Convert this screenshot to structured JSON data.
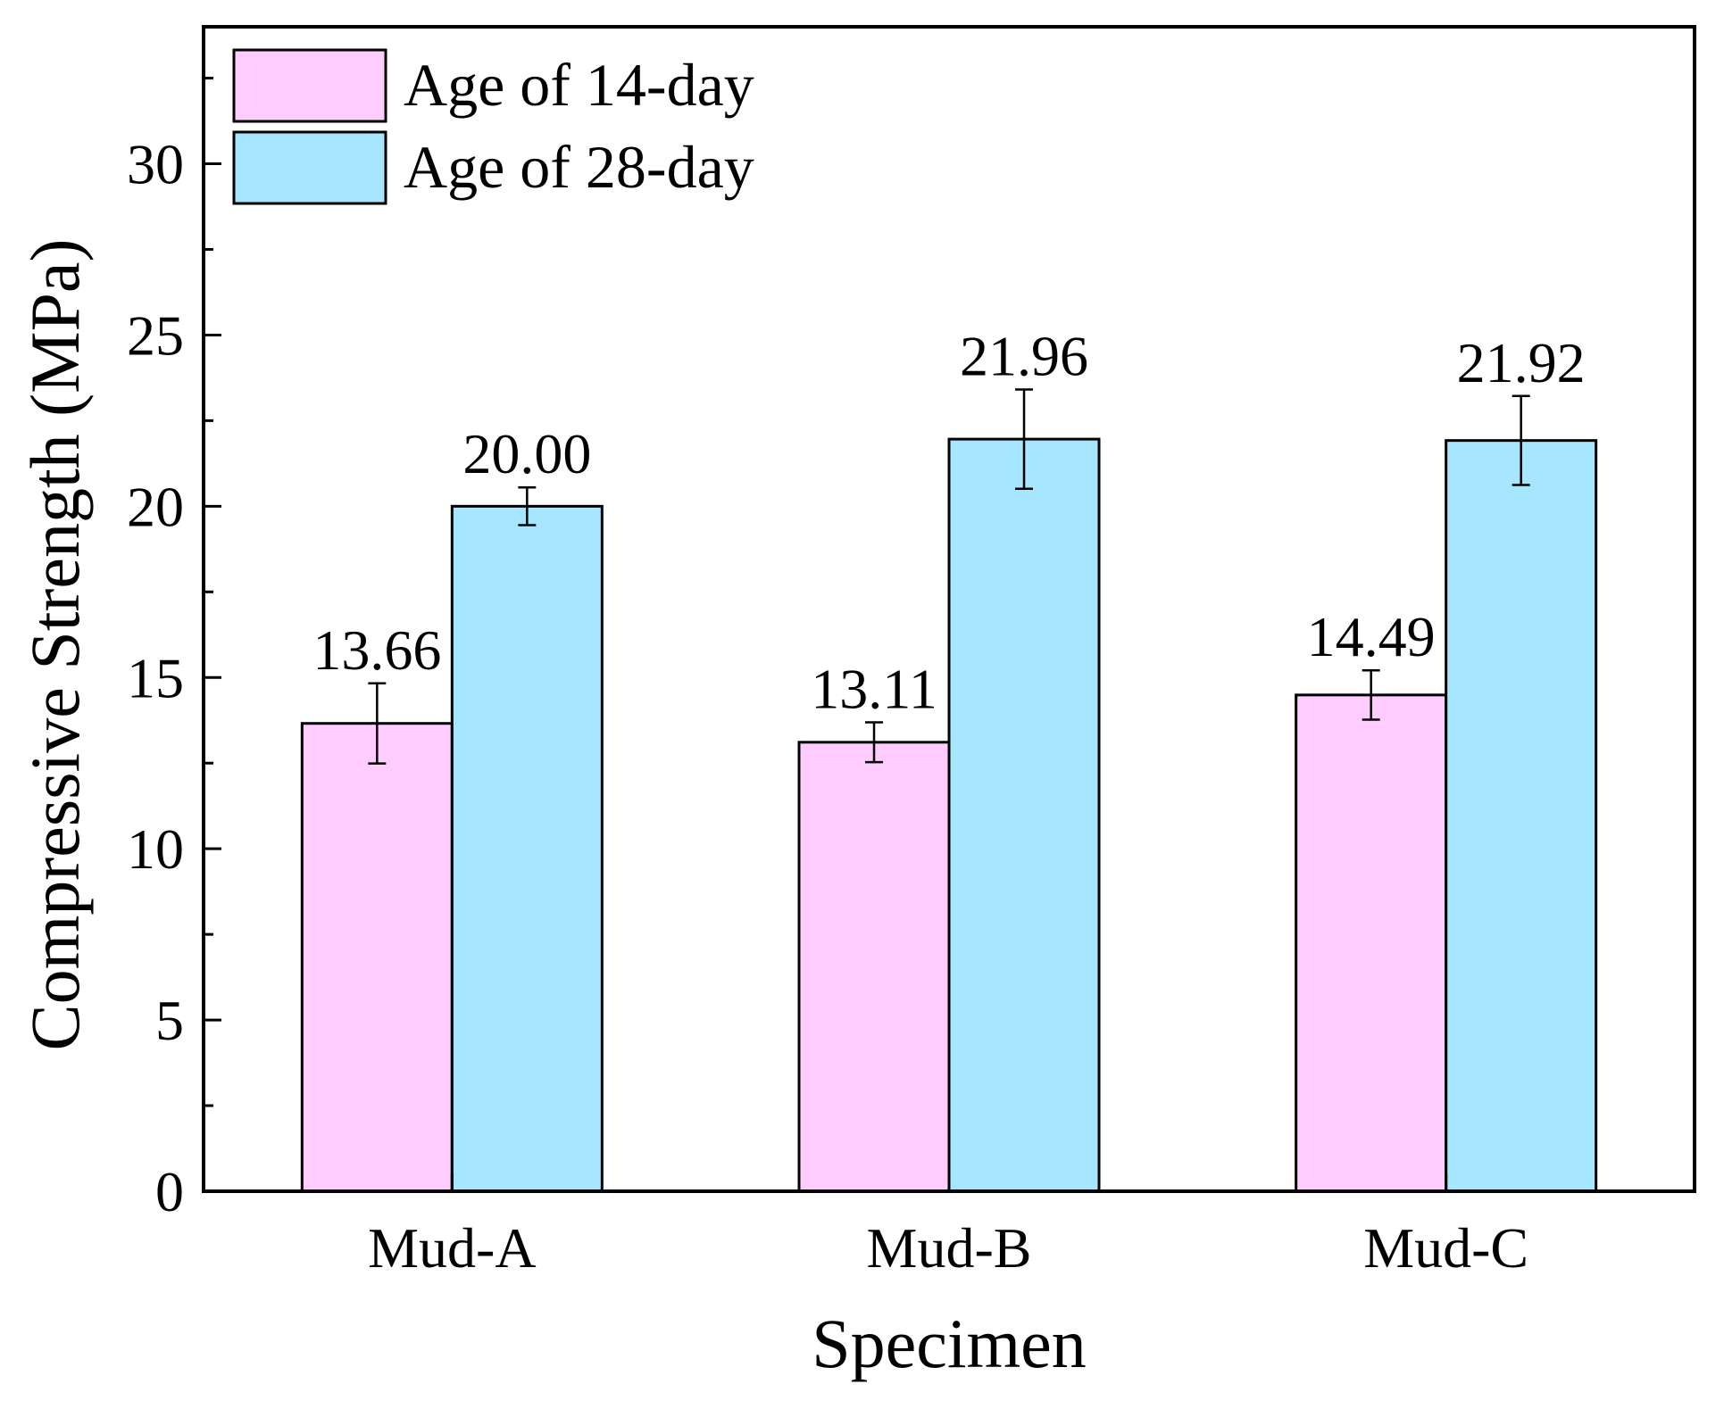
{
  "chart_data": {
    "type": "bar",
    "title": "",
    "xlabel": "Specimen",
    "ylabel": "Compressive Strength (MPa)",
    "ylim": [
      0,
      34
    ],
    "yticks": [
      0,
      5,
      10,
      15,
      20,
      25,
      30
    ],
    "ytick_labels": [
      "0",
      "5",
      "10",
      "15",
      "20",
      "25",
      "30"
    ],
    "minor_ytick_step": 2.5,
    "grid": false,
    "legend_position": "top-left",
    "categories": [
      "Mud-A",
      "Mud-B",
      "Mud-C"
    ],
    "series": [
      {
        "name": "Age of 14-day",
        "color": "#FFCCFF",
        "values": [
          13.66,
          13.11,
          14.49
        ],
        "value_labels": [
          "13.66",
          "13.11",
          "14.49"
        ],
        "error": [
          1.17,
          0.58,
          0.72
        ]
      },
      {
        "name": "Age of 28-day",
        "color": "#A6E6FF",
        "values": [
          20.0,
          21.96,
          21.92
        ],
        "value_labels": [
          "20.00",
          "21.96",
          "21.92"
        ],
        "error": [
          0.55,
          1.45,
          1.3
        ]
      }
    ]
  }
}
